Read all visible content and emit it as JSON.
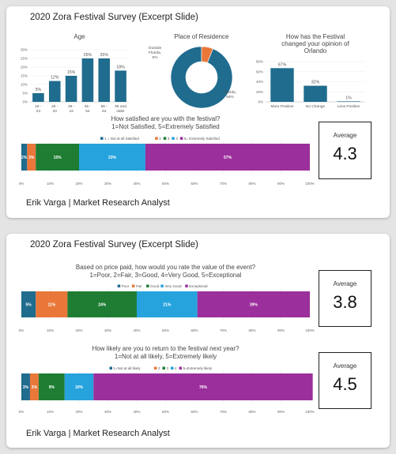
{
  "cards": [
    {
      "title": "2020 Zora Festival Survey (Excerpt Slide)",
      "footer": "Erik Varga | Market Research Analyst",
      "average": {
        "label": "Average",
        "value": "4.3"
      }
    },
    {
      "title": "2020 Zora Festival Survey (Excerpt Slide)",
      "footer": "Erik Varga | Market Research Analyst",
      "averages": [
        {
          "label": "Average",
          "value": "3.8"
        },
        {
          "label": "Average",
          "value": "4.5"
        }
      ]
    }
  ],
  "colors": {
    "teal": "#1f6c8e",
    "orange": "#e9773a",
    "green": "#1e7d33",
    "blue": "#26a3dd",
    "purple": "#9b2f9c",
    "axis": "#bbbbbb"
  },
  "chart_data": [
    {
      "id": "age",
      "type": "bar",
      "title": "Age",
      "categories": [
        "18 - 24",
        "25 - 34",
        "35 - 44",
        "45 - 54",
        "55 - 64",
        "65 and older"
      ],
      "values": [
        5,
        12,
        15,
        25,
        25,
        18
      ],
      "value_labels": [
        "5%",
        "12%",
        "15%",
        "25%",
        "25%",
        "18%"
      ],
      "ylim": [
        0,
        30
      ],
      "yticks": [
        "0%",
        "5%",
        "10%",
        "15%",
        "20%",
        "25%",
        "30%"
      ],
      "color": "#1f6c8e"
    },
    {
      "id": "residence",
      "type": "pie",
      "title": "Place of Residence",
      "slices": [
        {
          "label": "Florida, 94%",
          "value": 94,
          "color": "#1f6c8e"
        },
        {
          "label": "Outside Florida, 6%",
          "value": 6,
          "color": "#e9773a"
        }
      ]
    },
    {
      "id": "opinion",
      "type": "bar",
      "title": "How has the Festival changed your opinion of Orlando",
      "categories": [
        "More Positive",
        "No Change",
        "Less Positive"
      ],
      "values": [
        67,
        32,
        1
      ],
      "value_labels": [
        "67%",
        "32%",
        "1%"
      ],
      "ylim": [
        0,
        80
      ],
      "yticks": [
        "0%",
        "20%",
        "40%",
        "60%",
        "80%"
      ],
      "color": "#1f6c8e"
    },
    {
      "id": "satisfaction",
      "type": "bar",
      "orientation": "horizontal-stacked",
      "title": "How satisfied are you with the festival? 1=Not Satisfied, 5=Extremely Satisfied",
      "title_lines": [
        "How satisfied are you with the festival?",
        "1=Not Satisfied, 5=Extremely Satisfied"
      ],
      "series": [
        {
          "name": "1 = Not at all Satisfied",
          "value": 2,
          "label": "2%",
          "color": "#1f6c8e"
        },
        {
          "name": "2",
          "value": 3,
          "label": "3%",
          "color": "#e9773a"
        },
        {
          "name": "3",
          "value": 15,
          "label": "15%",
          "color": "#1e7d33"
        },
        {
          "name": "4",
          "value": 23,
          "label": "23%",
          "color": "#26a3dd"
        },
        {
          "name": "5= Extremely Satisfied",
          "value": 57,
          "label": "57%",
          "color": "#9b2f9c"
        }
      ],
      "xlim": [
        0,
        100
      ],
      "xticks": [
        "0%",
        "10%",
        "20%",
        "30%",
        "40%",
        "50%",
        "60%",
        "70%",
        "80%",
        "90%",
        "100%"
      ],
      "legend": "top"
    },
    {
      "id": "value",
      "type": "bar",
      "orientation": "horizontal-stacked",
      "title": "Based on price paid, how would you rate the value of the event? 1=Poor, 2=Fair, 3=Good, 4=Very Good, 5=Exceptional",
      "title_lines": [
        "Based on price paid, how would you rate the value of the event?",
        "1=Poor, 2=Fair, 3=Good, 4=Very Good, 5=Exceptional"
      ],
      "series": [
        {
          "name": "Poor",
          "value": 5,
          "label": "5%",
          "color": "#1f6c8e"
        },
        {
          "name": "Fair",
          "value": 11,
          "label": "11%",
          "color": "#e9773a"
        },
        {
          "name": "Good",
          "value": 24,
          "label": "24%",
          "color": "#1e7d33"
        },
        {
          "name": "Very Good",
          "value": 21,
          "label": "21%",
          "color": "#26a3dd"
        },
        {
          "name": "Exceptional",
          "value": 39,
          "label": "39%",
          "color": "#9b2f9c"
        }
      ],
      "xlim": [
        0,
        100
      ],
      "xticks": [
        "0%",
        "10%",
        "20%",
        "30%",
        "40%",
        "50%",
        "60%",
        "70%",
        "80%",
        "90%",
        "100%"
      ],
      "legend": "top"
    },
    {
      "id": "return",
      "type": "bar",
      "orientation": "horizontal-stacked",
      "title": "How likely are you to return to the festival next year? 1=Not at all likely, 5=Extremely likely",
      "title_lines": [
        "How likely are you to return to the festival next year?",
        "1=Not at all likely, 5=Extremely likely"
      ],
      "series": [
        {
          "name": "1=Not at all likely",
          "value": 3,
          "label": "3%",
          "color": "#1f6c8e"
        },
        {
          "name": "2",
          "value": 3,
          "label": "3%",
          "color": "#e9773a"
        },
        {
          "name": "3",
          "value": 9,
          "label": "9%",
          "color": "#1e7d33"
        },
        {
          "name": "4",
          "value": 10,
          "label": "10%",
          "color": "#26a3dd"
        },
        {
          "name": "5=Extremely likely",
          "value": 76,
          "label": "76%",
          "color": "#9b2f9c"
        }
      ],
      "xlim": [
        0,
        100
      ],
      "xticks": [
        "0%",
        "10%",
        "20%",
        "30%",
        "40%",
        "50%",
        "60%",
        "70%",
        "80%",
        "90%",
        "100%"
      ],
      "legend": "top"
    }
  ]
}
